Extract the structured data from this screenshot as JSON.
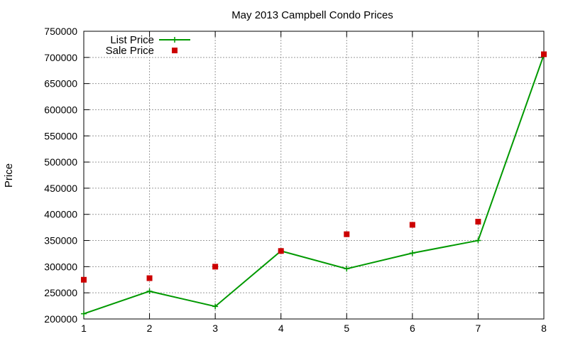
{
  "chart_data": {
    "type": "line",
    "title": "May 2013 Campbell Condo Prices",
    "xlabel": "",
    "ylabel": "Price",
    "x": [
      1,
      2,
      3,
      4,
      5,
      6,
      7,
      8
    ],
    "xlim": [
      1,
      8
    ],
    "ylim": [
      200000,
      750000
    ],
    "x_ticks": [
      "1",
      "2",
      "3",
      "4",
      "5",
      "6",
      "7",
      "8"
    ],
    "y_ticks": [
      "200000",
      "250000",
      "300000",
      "350000",
      "400000",
      "450000",
      "500000",
      "550000",
      "600000",
      "650000",
      "700000",
      "750000"
    ],
    "grid": true,
    "legend_position": "top-left",
    "series": [
      {
        "name": "List Price",
        "style": "line-plus",
        "color": "#009900",
        "values": [
          210000,
          253000,
          224000,
          330000,
          296000,
          326000,
          350000,
          705000
        ]
      },
      {
        "name": "Sale Price",
        "style": "square-markers",
        "color": "#cc0000",
        "values": [
          275000,
          278000,
          300000,
          330000,
          362000,
          380000,
          386000,
          706000
        ]
      }
    ]
  }
}
